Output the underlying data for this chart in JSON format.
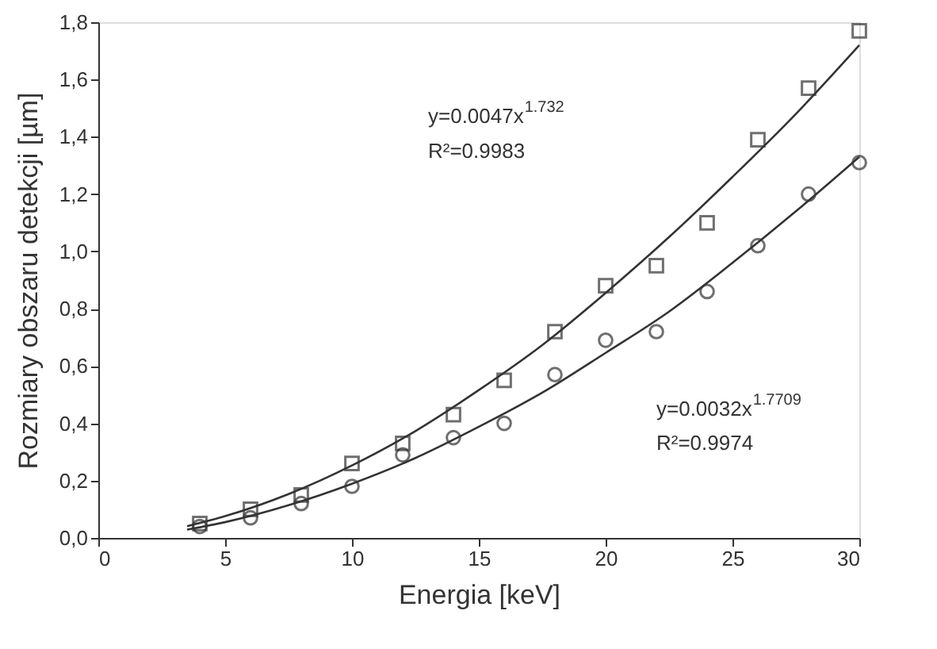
{
  "chart_data": {
    "type": "scatter",
    "xlabel": "Energia [keV]",
    "ylabel": "Rozmiary obszaru detekcji [µm]",
    "xlim": [
      0,
      30
    ],
    "xticks": [
      0,
      5,
      10,
      15,
      20,
      25,
      30
    ],
    "ylim": [
      0,
      1.8
    ],
    "yticks": [
      {
        "value": 0,
        "label": "0,0"
      },
      {
        "value": 0.2,
        "label": "0,2"
      },
      {
        "value": 0.4,
        "label": "0,4"
      },
      {
        "value": 0.6,
        "label": "0,6"
      },
      {
        "value": 0.8,
        "label": "0,8"
      },
      {
        "value": 1.0,
        "label": "1,0"
      },
      {
        "value": 1.2,
        "label": "1,2"
      },
      {
        "value": 1.4,
        "label": "1,4"
      },
      {
        "value": 1.6,
        "label": "1,6"
      },
      {
        "value": 1.8,
        "label": "1,8"
      }
    ],
    "grid": false,
    "series": [
      {
        "type": "scatter",
        "marker": "square",
        "color": "#333333",
        "x": [
          4,
          6,
          8,
          10,
          12,
          14,
          16,
          18,
          20,
          22,
          24,
          26,
          28,
          30
        ],
        "values": [
          0.05,
          0.1,
          0.15,
          0.26,
          0.33,
          0.43,
          0.55,
          0.72,
          0.88,
          0.95,
          1.1,
          1.39,
          1.57,
          1.77
        ]
      },
      {
        "type": "scatter",
        "marker": "circle",
        "color": "#333333",
        "x": [
          4,
          6,
          8,
          10,
          12,
          14,
          16,
          18,
          20,
          22,
          24,
          26,
          28,
          30
        ],
        "values": [
          0.04,
          0.07,
          0.12,
          0.18,
          0.29,
          0.35,
          0.4,
          0.57,
          0.69,
          0.72,
          0.86,
          1.02,
          1.2,
          1.31
        ]
      },
      {
        "type": "line",
        "marker": "none",
        "color": "#333333",
        "x": [
          3.5,
          5,
          7.5,
          10,
          12.5,
          15,
          17.5,
          20,
          22.5,
          25,
          27.5,
          30
        ],
        "values": [
          0.041,
          0.076,
          0.153,
          0.253,
          0.373,
          0.516,
          0.673,
          0.855,
          1.05,
          1.26,
          1.48,
          1.72
        ]
      },
      {
        "type": "line",
        "marker": "none",
        "color": "#333333",
        "x": [
          3.5,
          5,
          7.5,
          10,
          12.5,
          15,
          17.5,
          20,
          22.5,
          25,
          27.5,
          30
        ],
        "values": [
          0.029,
          0.055,
          0.114,
          0.189,
          0.279,
          0.388,
          0.507,
          0.646,
          0.79,
          0.96,
          1.14,
          1.33
        ]
      }
    ],
    "annotations": [
      "y=0.0047x$^{1.732}$",
      "R²=0.9983",
      "y=0.0032x$^{1.7709}$",
      "R²=0.9974"
    ]
  }
}
